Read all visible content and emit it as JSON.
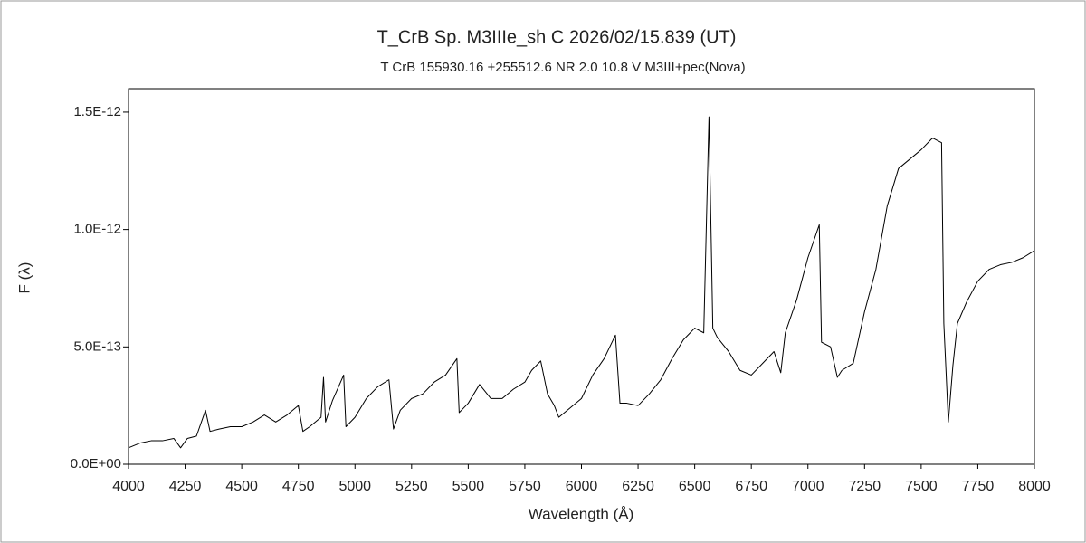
{
  "chart_data": {
    "type": "line",
    "title": "T_CrB    Sp. M3IIIe_sh C    2026/02/15.839 (UT)",
    "subtitle": "T CrB    155930.16 +255512.6    NR   2.0  10.8  V    M3III+pec(Nova)",
    "x_label": "Wavelength (Å)",
    "y_label": "F (λ)",
    "color": "#000000",
    "grid": false,
    "xlim": [
      4000,
      8000
    ],
    "xticks": [
      4000,
      4250,
      4500,
      4750,
      5000,
      5250,
      5500,
      5750,
      6000,
      6250,
      6500,
      6750,
      7000,
      7250,
      7500,
      7750,
      8000
    ],
    "ylim": [
      0,
      1.6e-12
    ],
    "yticks": [
      {
        "value": 0,
        "label": "0.0E+00"
      },
      {
        "value": 5e-13,
        "label": "5.0E-13"
      },
      {
        "value": 1e-12,
        "label": "1.0E-12"
      },
      {
        "value": 1.5e-12,
        "label": "1.5E-12"
      }
    ],
    "x": [
      4000,
      4050,
      4100,
      4150,
      4200,
      4230,
      4260,
      4300,
      4340,
      4360,
      4400,
      4450,
      4500,
      4550,
      4600,
      4650,
      4700,
      4750,
      4770,
      4800,
      4850,
      4861,
      4870,
      4900,
      4950,
      4960,
      5000,
      5050,
      5100,
      5150,
      5170,
      5200,
      5250,
      5300,
      5350,
      5400,
      5450,
      5460,
      5500,
      5550,
      5600,
      5650,
      5700,
      5750,
      5780,
      5820,
      5850,
      5880,
      5900,
      5950,
      6000,
      6050,
      6100,
      6150,
      6170,
      6200,
      6250,
      6300,
      6350,
      6400,
      6450,
      6500,
      6540,
      6563,
      6580,
      6600,
      6650,
      6700,
      6750,
      6800,
      6850,
      6880,
      6900,
      6950,
      7000,
      7050,
      7060,
      7100,
      7130,
      7150,
      7200,
      7250,
      7300,
      7350,
      7400,
      7450,
      7500,
      7550,
      7590,
      7600,
      7620,
      7640,
      7660,
      7700,
      7750,
      7800,
      7850,
      7900,
      7950,
      8000
    ],
    "values": [
      7e-14,
      9e-14,
      1e-13,
      1e-13,
      1.1e-13,
      7e-14,
      1.1e-13,
      1.2e-13,
      2.3e-13,
      1.4e-13,
      1.5e-13,
      1.6e-13,
      1.6e-13,
      1.8e-13,
      2.1e-13,
      1.8e-13,
      2.1e-13,
      2.5e-13,
      1.4e-13,
      1.6e-13,
      2e-13,
      3.7e-13,
      1.8e-13,
      2.7e-13,
      3.8e-13,
      1.6e-13,
      2e-13,
      2.8e-13,
      3.3e-13,
      3.6e-13,
      1.5e-13,
      2.3e-13,
      2.8e-13,
      3e-13,
      3.5e-13,
      3.8e-13,
      4.5e-13,
      2.2e-13,
      2.6e-13,
      3.4e-13,
      2.8e-13,
      2.8e-13,
      3.2e-13,
      3.5e-13,
      4e-13,
      4.4e-13,
      3e-13,
      2.5e-13,
      2e-13,
      2.4e-13,
      2.8e-13,
      3.8e-13,
      4.5e-13,
      5.5e-13,
      2.6e-13,
      2.6e-13,
      2.5e-13,
      3e-13,
      3.6e-13,
      4.5e-13,
      5.3e-13,
      5.8e-13,
      5.6e-13,
      1.48e-12,
      5.8e-13,
      5.4e-13,
      4.8e-13,
      4e-13,
      3.8e-13,
      4.3e-13,
      4.8e-13,
      3.9e-13,
      5.6e-13,
      7e-13,
      8.8e-13,
      1.02e-12,
      5.2e-13,
      5e-13,
      3.7e-13,
      4e-13,
      4.3e-13,
      6.5e-13,
      8.3e-13,
      1.1e-12,
      1.26e-12,
      1.3e-12,
      1.34e-12,
      1.39e-12,
      1.37e-12,
      6e-13,
      1.8e-13,
      4.2e-13,
      6e-13,
      6.9e-13,
      7.8e-13,
      8.3e-13,
      8.5e-13,
      8.6e-13,
      8.8e-13,
      9.1e-13
    ]
  }
}
